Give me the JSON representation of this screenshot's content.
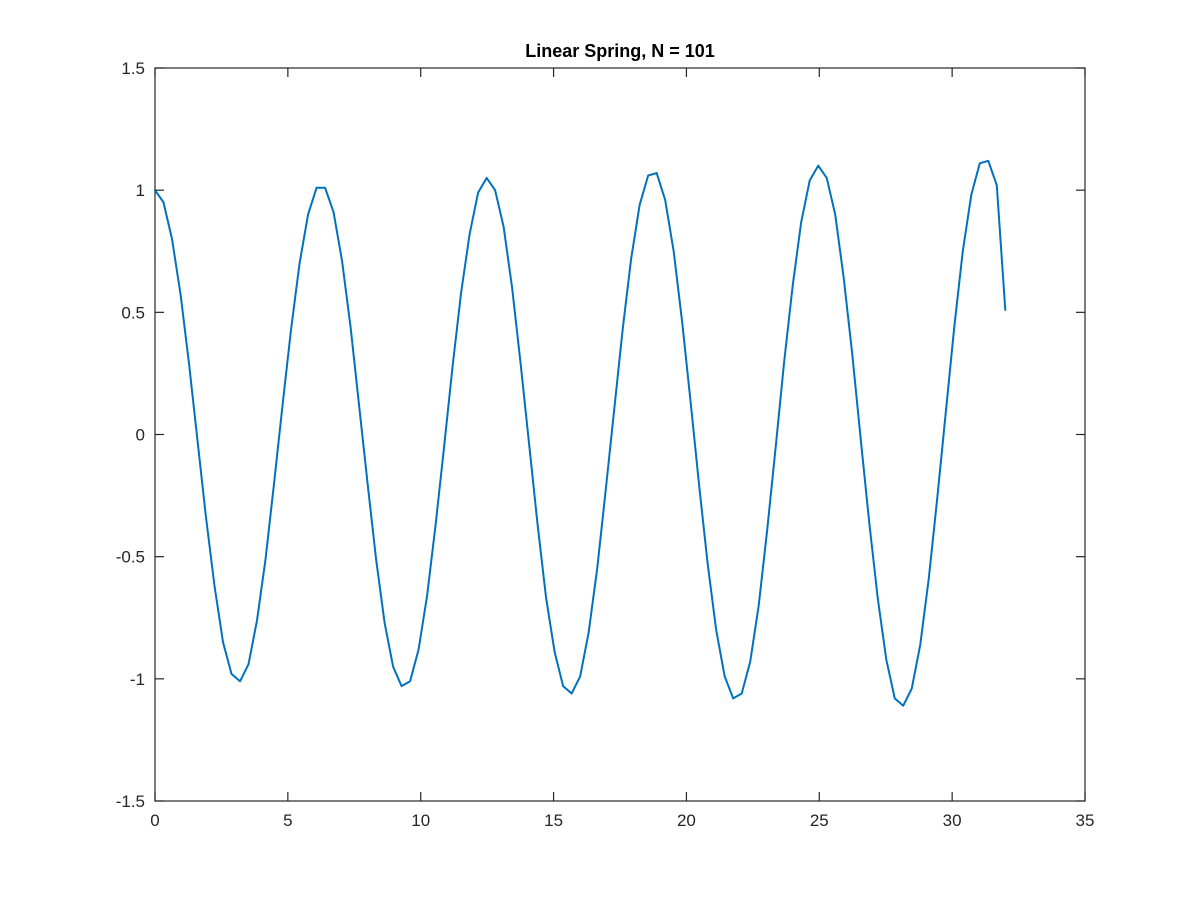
{
  "chart_data": {
    "type": "line",
    "title": "Linear Spring, N = 101",
    "xlabel": "",
    "ylabel": "",
    "xlim": [
      0,
      35
    ],
    "ylim": [
      -1.5,
      1.5
    ],
    "xticks": [
      "0",
      "5",
      "10",
      "15",
      "20",
      "25",
      "30",
      "35"
    ],
    "yticks": [
      "-1.5",
      "-1",
      "-0.5",
      "0",
      "0.5",
      "1",
      "1.5"
    ],
    "grid": false,
    "legend": "none",
    "series": [
      {
        "color": "#0072BD",
        "x": [
          0,
          0.32,
          0.64,
          0.96,
          1.28,
          1.6,
          1.92,
          2.24,
          2.56,
          2.88,
          3.2,
          3.52,
          3.84,
          4.16,
          4.48,
          4.8,
          5.12,
          5.44,
          5.76,
          6.08,
          6.4,
          6.72,
          7.04,
          7.36,
          7.68,
          8.0,
          8.32,
          8.64,
          8.96,
          9.28,
          9.6,
          9.92,
          10.24,
          10.56,
          10.88,
          11.2,
          11.52,
          11.84,
          12.16,
          12.48,
          12.8,
          13.12,
          13.44,
          13.76,
          14.08,
          14.4,
          14.72,
          15.04,
          15.36,
          15.68,
          16.0,
          16.32,
          16.64,
          16.96,
          17.28,
          17.6,
          17.92,
          18.24,
          18.56,
          18.88,
          19.2,
          19.52,
          19.84,
          20.16,
          20.48,
          20.8,
          21.12,
          21.44,
          21.76,
          22.08,
          22.4,
          22.72,
          23.04,
          23.36,
          23.68,
          24.0,
          24.32,
          24.64,
          24.96,
          25.28,
          25.6,
          25.92,
          26.24,
          26.56,
          26.88,
          27.2,
          27.52,
          27.84,
          28.16,
          28.48,
          28.8,
          29.12,
          29.44,
          29.76,
          30.08,
          30.4,
          30.72,
          31.04,
          31.36,
          31.68,
          32.0
        ],
        "y": [
          1.0,
          0.95,
          0.8,
          0.575,
          0.29,
          -0.025,
          -0.34,
          -0.62,
          -0.85,
          -0.98,
          -1.01,
          -0.94,
          -0.76,
          -0.51,
          -0.2,
          0.12,
          0.43,
          0.7,
          0.9,
          1.01,
          1.01,
          0.91,
          0.71,
          0.44,
          0.12,
          -0.2,
          -0.51,
          -0.77,
          -0.95,
          -1.03,
          -1.01,
          -0.88,
          -0.66,
          -0.37,
          -0.05,
          0.28,
          0.58,
          0.82,
          0.99,
          1.05,
          1.0,
          0.85,
          0.6,
          0.29,
          -0.04,
          -0.37,
          -0.67,
          -0.89,
          -1.03,
          -1.06,
          -0.99,
          -0.81,
          -0.55,
          -0.23,
          0.1,
          0.43,
          0.72,
          0.94,
          1.06,
          1.07,
          0.96,
          0.75,
          0.46,
          0.13,
          -0.21,
          -0.53,
          -0.8,
          -0.99,
          -1.08,
          -1.06,
          -0.93,
          -0.7,
          -0.39,
          -0.05,
          0.3,
          0.61,
          0.87,
          1.04,
          1.1,
          1.05,
          0.9,
          0.64,
          0.33,
          -0.02,
          -0.36,
          -0.67,
          -0.92,
          -1.08,
          -1.11,
          -1.04,
          -0.86,
          -0.59,
          -0.26,
          0.09,
          0.44,
          0.75,
          0.98,
          1.11,
          1.12,
          1.02,
          0.51
        ]
      }
    ]
  }
}
